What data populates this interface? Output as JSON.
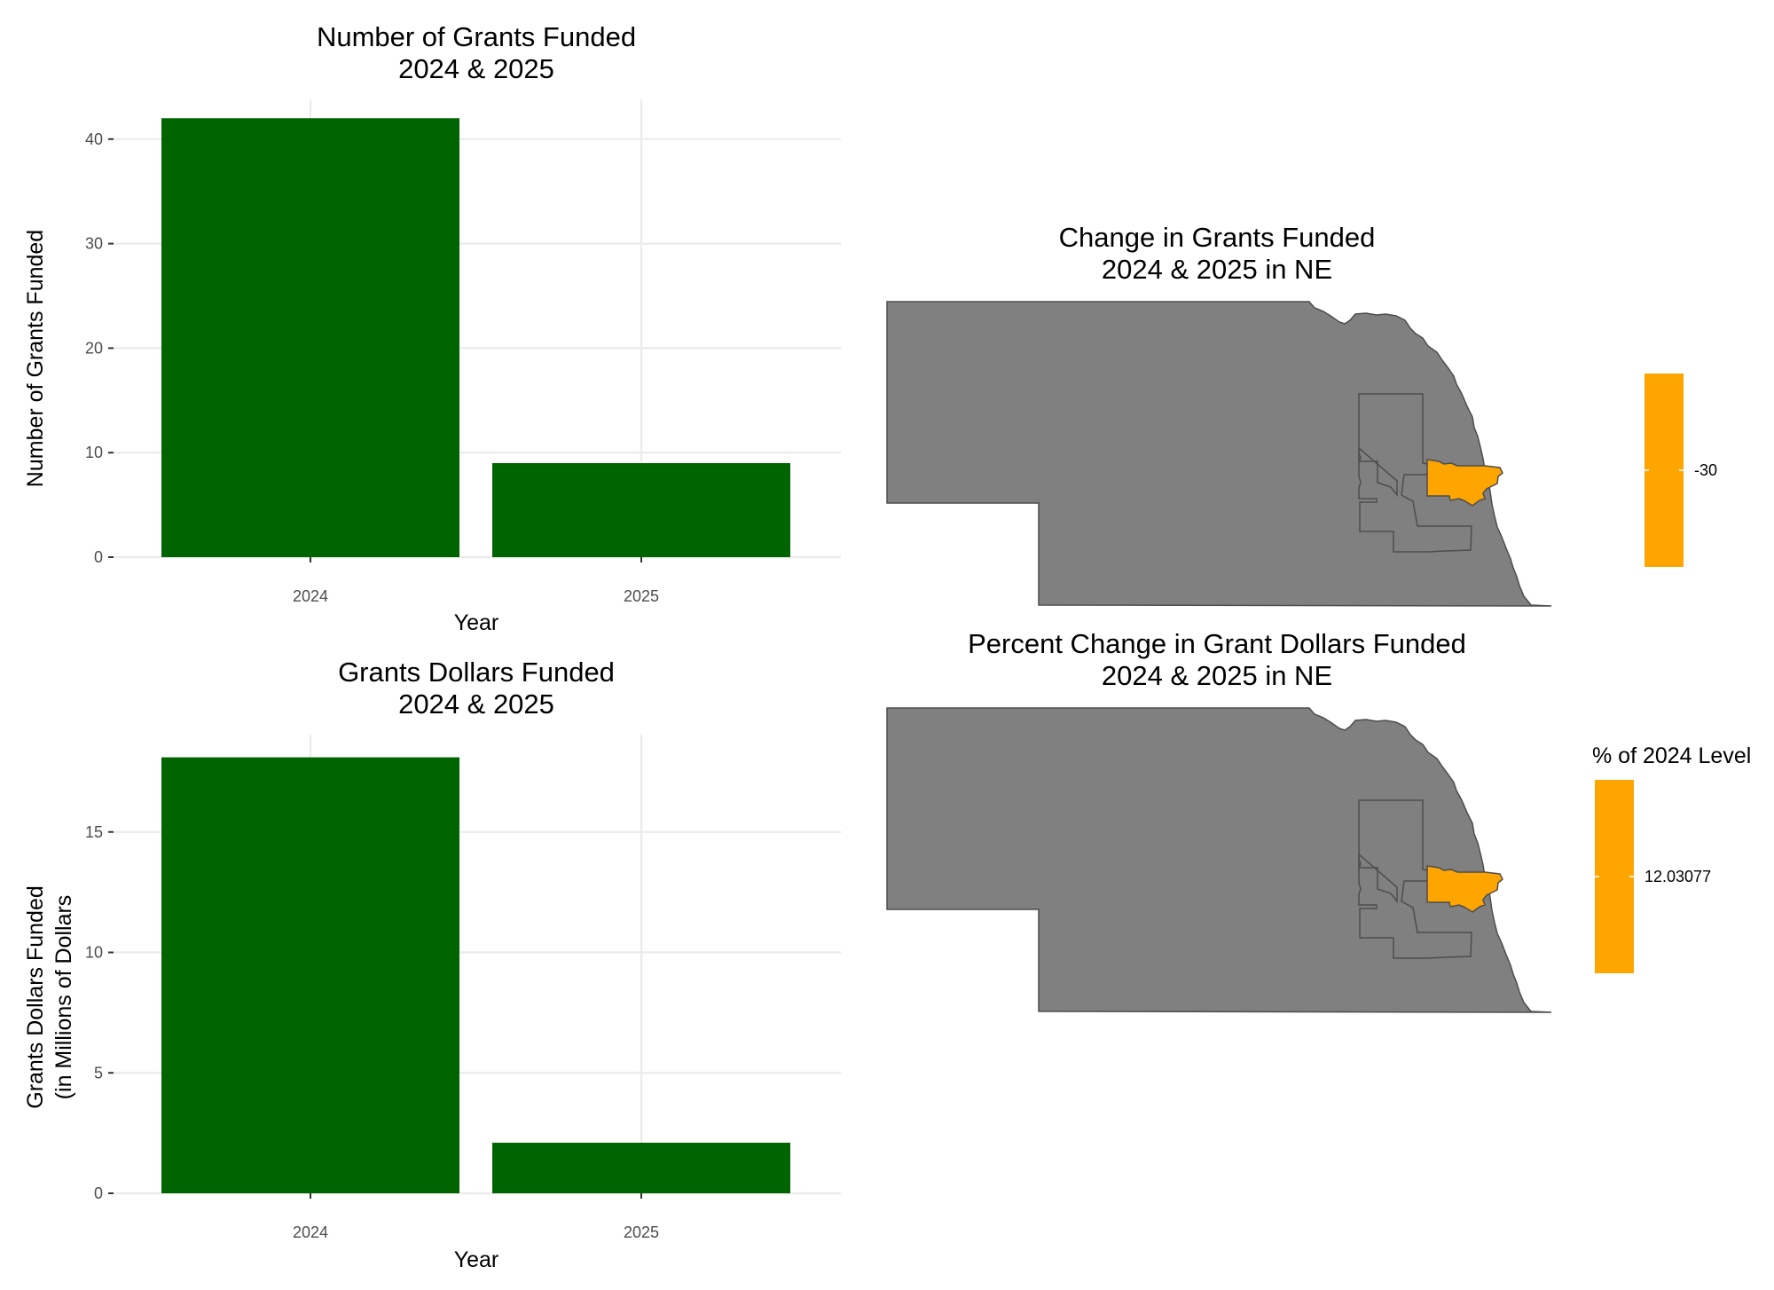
{
  "chart_data": [
    {
      "type": "bar",
      "title_lines": [
        "Number of Grants Funded",
        "2024 & 2025"
      ],
      "xlabel": "Year",
      "ylabel_lines": [
        "Number of Grants Funded"
      ],
      "categories": [
        "2024",
        "2025"
      ],
      "values": [
        42,
        9
      ],
      "yticks": [
        "0",
        "10",
        "20",
        "30",
        "40"
      ],
      "ylim": [
        0,
        44
      ],
      "bar_color": "#006400",
      "grid": true
    },
    {
      "type": "bar",
      "title_lines": [
        "Grants Dollars Funded",
        "2024 & 2025"
      ],
      "xlabel": "Year",
      "ylabel_lines": [
        "Grants Dollars Funded",
        "(in Millions of Dollars"
      ],
      "categories": [
        "2024",
        "2025"
      ],
      "values": [
        18.1,
        2.1
      ],
      "yticks": [
        "0",
        "5",
        "10",
        "15"
      ],
      "ylim": [
        0,
        19
      ],
      "bar_color": "#006400",
      "grid": true
    },
    {
      "type": "map",
      "title_lines": [
        "Change in Grants Funded",
        "2024 & 2025 in NE"
      ],
      "region": "Nebraska",
      "base_fill": "#808080",
      "highlight_fill": "#FFA500",
      "legend": {
        "title": "",
        "value_label": "-30",
        "value": -30,
        "color": "#FFA500",
        "placement": "right"
      }
    },
    {
      "type": "map",
      "title_lines": [
        "Percent Change in Grant Dollars Funded",
        "2024 & 2025 in NE"
      ],
      "region": "Nebraska",
      "base_fill": "#808080",
      "highlight_fill": "#FFA500",
      "legend": {
        "title": "% of 2024 Level",
        "value_label": "12.03077",
        "value": 12.03077,
        "color": "#FFA500",
        "placement": "right"
      }
    }
  ]
}
